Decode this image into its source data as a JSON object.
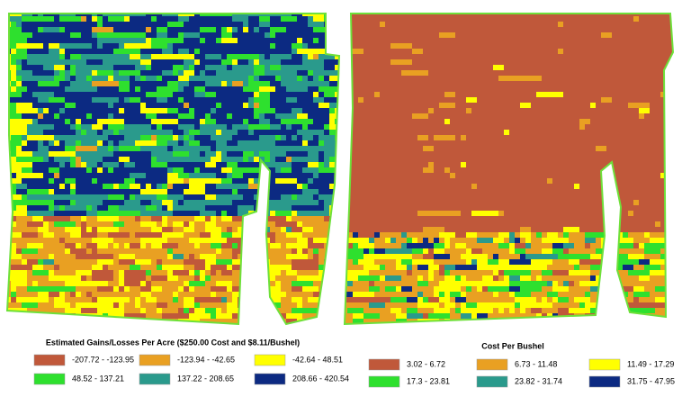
{
  "maps": [
    {
      "legend_title": "Estimated Gains/Losses Per Acre ($250.00 Cost and $8.11/Bushel)",
      "items": [
        {
          "label": "-207.72 - -123.95",
          "color": "#c0583a"
        },
        {
          "label": "-123.94 - -42.65",
          "color": "#e9a022"
        },
        {
          "label": "-42.64 - 48.51",
          "color": "#ffff00"
        },
        {
          "label": "48.52 - 137.21",
          "color": "#2ee02e"
        },
        {
          "label": "137.22 - 208.65",
          "color": "#2a9a8c"
        },
        {
          "label": "208.66 - 420.54",
          "color": "#0c2a82"
        }
      ]
    },
    {
      "legend_title": "Cost Per Bushel",
      "items": [
        {
          "label": "3.02 - 6.72",
          "color": "#c0583a"
        },
        {
          "label": "6.73 - 11.48",
          "color": "#e9a022"
        },
        {
          "label": "11.49 - 17.29",
          "color": "#ffff00"
        },
        {
          "label": "17.3 - 23.81",
          "color": "#2ee02e"
        },
        {
          "label": "23.82 - 31.74",
          "color": "#2a9a8c"
        },
        {
          "label": "31.75 - 47.95",
          "color": "#0c2a82"
        }
      ]
    }
  ]
}
